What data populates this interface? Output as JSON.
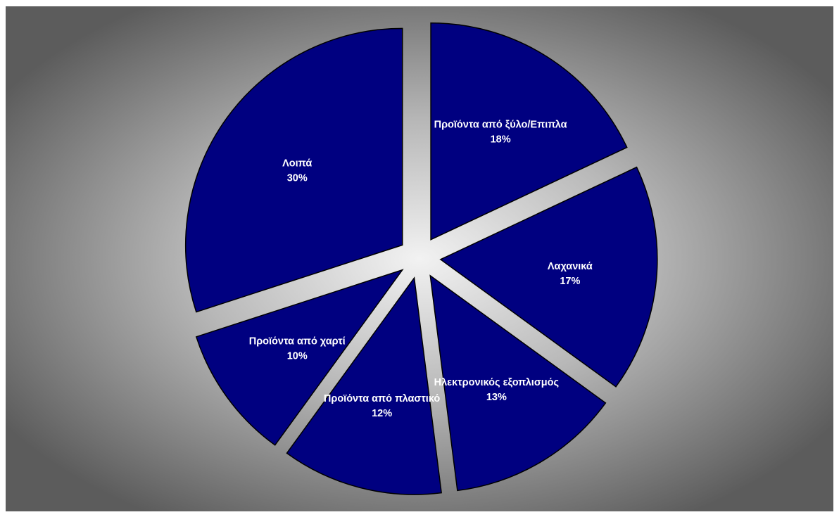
{
  "chart_data": {
    "type": "pie",
    "exploded": true,
    "slice_color": "#000080",
    "background": "radial-gradient-gray",
    "slices": [
      {
        "label": "Προϊόντα από ξύλο/Επιπλα",
        "value": 18,
        "value_label": "18%"
      },
      {
        "label": "Λαχανικά",
        "value": 17,
        "value_label": "17%"
      },
      {
        "label": "Ηλεκτρονικός εξοπλισμός",
        "value": 13,
        "value_label": "13%"
      },
      {
        "label": "Προϊόντα από πλαστικό",
        "value": 12,
        "value_label": "12%"
      },
      {
        "label": "Προϊόντα από χαρτί",
        "value": 10,
        "value_label": "10%"
      },
      {
        "label": "Λοιπά",
        "value": 30,
        "value_label": "30%"
      }
    ]
  }
}
